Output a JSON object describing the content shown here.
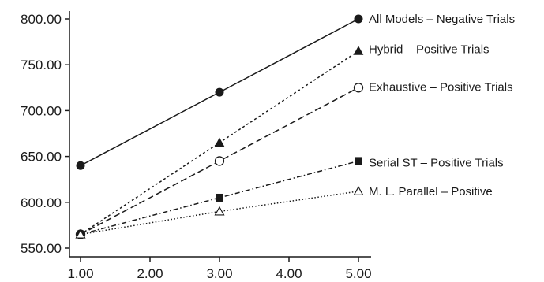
{
  "chart_data": {
    "type": "line",
    "title": "",
    "xlabel": "",
    "ylabel": "",
    "x": [
      1,
      3,
      5
    ],
    "xlim": [
      1,
      5
    ],
    "ylim": [
      550,
      800
    ],
    "x_ticks": [
      "1.00",
      "2.00",
      "3.00",
      "4.00",
      "5.00"
    ],
    "y_ticks": [
      "550.00",
      "600.00",
      "650.00",
      "700.00",
      "750.00",
      "800.00"
    ],
    "grid": false,
    "series": [
      {
        "name": "All Models – Negative Trials",
        "values": [
          640,
          720,
          800
        ],
        "marker": "filled-circle",
        "line": "solid",
        "color": "#1a1a1a"
      },
      {
        "name": "Hybrid – Positive Trials",
        "values": [
          565,
          665,
          765
        ],
        "marker": "filled-triangle",
        "line": "dashed-short",
        "color": "#1a1a1a"
      },
      {
        "name": "Exhaustive – Positive Trials",
        "values": [
          565,
          645,
          725
        ],
        "marker": "open-circle",
        "line": "dashed-long",
        "color": "#1a1a1a"
      },
      {
        "name": "Serial ST – Positive Trials",
        "values": [
          565,
          605,
          645
        ],
        "marker": "filled-square",
        "line": "dash-dot",
        "color": "#1a1a1a"
      },
      {
        "name": "M. L. Parallel – Positive",
        "values": [
          565,
          590,
          612
        ],
        "marker": "open-triangle",
        "line": "dotted",
        "color": "#1a1a1a"
      }
    ]
  }
}
